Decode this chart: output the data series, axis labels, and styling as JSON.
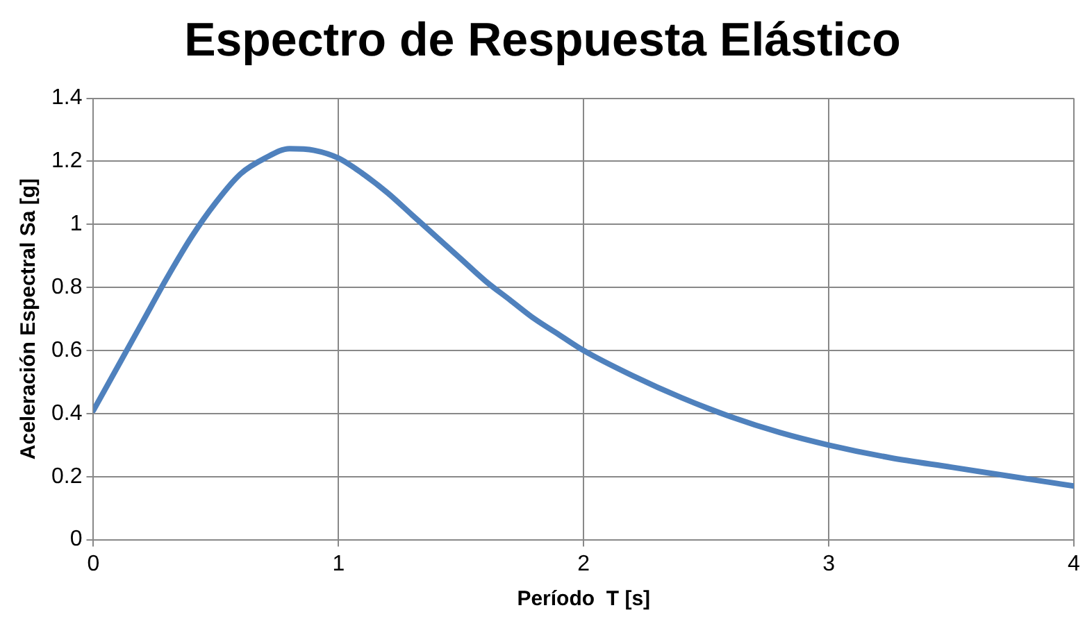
{
  "chart_data": {
    "type": "line",
    "title": "Espectro de Respuesta Elástico",
    "xlabel": "Período  T [s]",
    "ylabel": "Aceleración Espectral Sa [g]",
    "x": [
      0,
      0.1,
      0.2,
      0.3,
      0.4,
      0.5,
      0.6,
      0.7,
      0.8,
      0.9,
      1.0,
      1.1,
      1.2,
      1.3,
      1.4,
      1.5,
      1.6,
      1.7,
      1.8,
      1.9,
      2.0,
      2.2,
      2.4,
      2.6,
      2.8,
      3.0,
      3.25,
      3.5,
      3.75,
      4.0
    ],
    "series": [
      {
        "color": "#4f81bd",
        "values": [
          0.41,
          0.55,
          0.69,
          0.83,
          0.96,
          1.07,
          1.16,
          1.21,
          1.24,
          1.235,
          1.21,
          1.16,
          1.1,
          1.03,
          0.96,
          0.89,
          0.82,
          0.76,
          0.7,
          0.65,
          0.6,
          0.52,
          0.45,
          0.39,
          0.34,
          0.3,
          0.26,
          0.23,
          0.2,
          0.17
        ]
      }
    ],
    "xlim": [
      0,
      4
    ],
    "xticks": [
      0,
      1,
      2,
      3,
      4
    ],
    "ylim": [
      0,
      1.4
    ],
    "yticks": [
      0,
      0.2,
      0.4,
      0.6,
      0.8,
      1,
      1.2,
      1.4
    ],
    "grid": true,
    "legend": false,
    "marker": "none",
    "line_style": "solid"
  }
}
